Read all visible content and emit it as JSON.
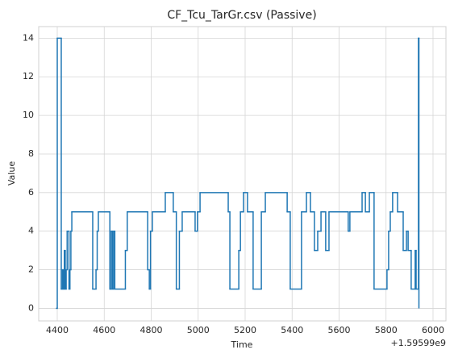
{
  "chart_data": {
    "type": "line",
    "drawstyle": "steps-post",
    "title": "CF_Tcu_TarGr.csv (Passive)",
    "x_label": "Time",
    "y_label": "Value",
    "x_offset_label": "+1.59599e9",
    "series": [
      {
        "name": "CF_Tcu_TarGr",
        "color": "#1f77b4",
        "x": [
          4397,
          4400,
          4417,
          4422,
          4426,
          4430,
          4434,
          4438,
          4442,
          4450,
          4454,
          4458,
          4462,
          4551,
          4565,
          4570,
          4575,
          4624,
          4630,
          4635,
          4640,
          4645,
          4690,
          4698,
          4785,
          4792,
          4797,
          4805,
          4860,
          4894,
          4907,
          4920,
          4932,
          4987,
          4997,
          5008,
          5128,
          5135,
          5173,
          5180,
          5193,
          5210,
          5234,
          5269,
          5286,
          5379,
          5392,
          5440,
          5461,
          5478,
          5495,
          5509,
          5523,
          5543,
          5557,
          5639,
          5646,
          5698,
          5712,
          5729,
          5749,
          5804,
          5811,
          5818,
          5828,
          5849,
          5873,
          5887,
          5894,
          5907,
          5924,
          5928,
          5938,
          5940
        ],
        "values": [
          0,
          14,
          1,
          2,
          1,
          3,
          1,
          2,
          4,
          1,
          2,
          4,
          5,
          1,
          2,
          4,
          5,
          1,
          4,
          1,
          4,
          1,
          3,
          5,
          2,
          1,
          4,
          5,
          6,
          5,
          1,
          4,
          5,
          4,
          5,
          6,
          5,
          1,
          3,
          5,
          6,
          5,
          1,
          5,
          6,
          5,
          1,
          5,
          6,
          5,
          3,
          4,
          5,
          3,
          5,
          4,
          5,
          6,
          5,
          6,
          1,
          2,
          4,
          5,
          6,
          5,
          3,
          4,
          3,
          1,
          3,
          1,
          14,
          0
        ]
      }
    ],
    "xlim": [
      4321,
      6055
    ],
    "ylim": [
      -0.65,
      14.6
    ],
    "xticks": [
      4400,
      4600,
      4800,
      5000,
      5200,
      5400,
      5600,
      5800,
      6000
    ],
    "yticks": [
      0,
      2,
      4,
      6,
      8,
      10,
      12,
      14
    ],
    "grid": true
  }
}
